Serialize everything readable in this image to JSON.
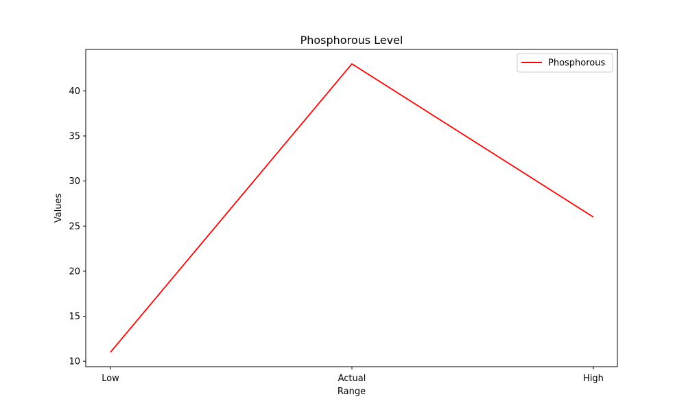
{
  "chart_data": {
    "type": "line",
    "title": "Phosphorous Level",
    "xlabel": "Range",
    "ylabel": "Values",
    "categories": [
      "Low",
      "Actual",
      "High"
    ],
    "series": [
      {
        "name": "Phosphorous",
        "values": [
          11,
          43,
          26
        ],
        "color": "#ff0000"
      }
    ],
    "ylim": [
      9.4,
      44.6
    ],
    "yticks": [
      10,
      15,
      20,
      25,
      30,
      35,
      40
    ],
    "grid": false,
    "legend_position": "top-right"
  }
}
